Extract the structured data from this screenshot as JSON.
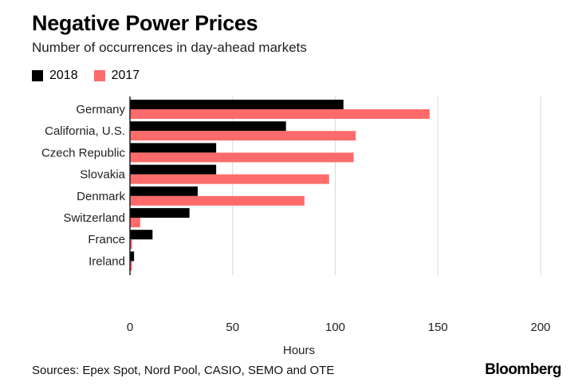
{
  "title": "Negative Power Prices",
  "subtitle": "Number of occurrences in day-ahead markets",
  "source": "Sources: Epex Spot, Nord Pool, CASIO, SEMO and OTE",
  "brand": "Bloomberg",
  "colors": {
    "s2018": "#000000",
    "s2017": "#ff6b6b",
    "grid": "#d9d9d9",
    "axis": "#222222"
  },
  "chart_data": {
    "type": "bar",
    "orientation": "horizontal",
    "categories": [
      "Germany",
      "California, U.S.",
      "Czech Republic",
      "Slovakia",
      "Denmark",
      "Switzerland",
      "France",
      "Ireland"
    ],
    "series": [
      {
        "name": "2018",
        "values": [
          104,
          76,
          42,
          42,
          33,
          29,
          11,
          2
        ]
      },
      {
        "name": "2017",
        "values": [
          146,
          110,
          109,
          97,
          85,
          5,
          1,
          1
        ]
      }
    ],
    "xlabel": "Hours",
    "xlim": [
      0,
      200
    ],
    "xticks": [
      0,
      50,
      100,
      150,
      200
    ],
    "grid": true,
    "legend": "top-left"
  }
}
